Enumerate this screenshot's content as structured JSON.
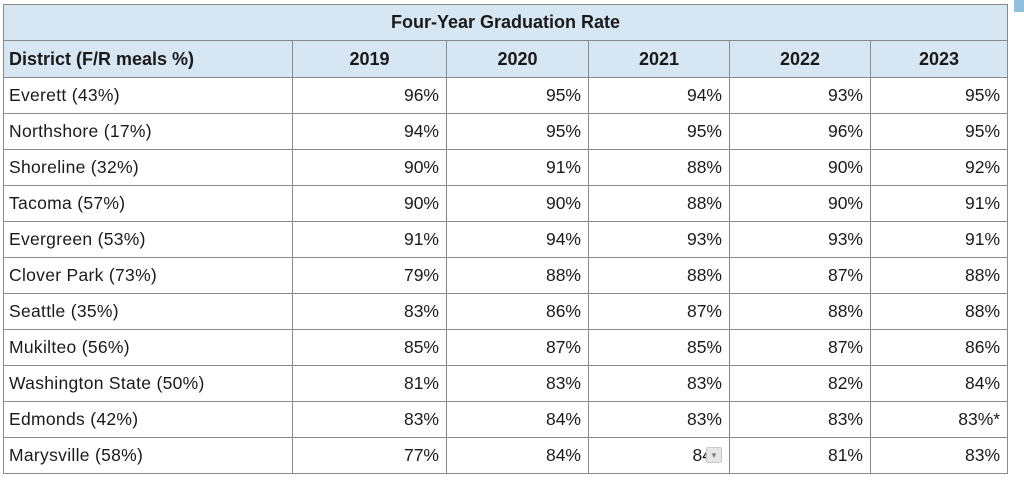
{
  "table": {
    "title": "Four-Year Graduation Rate",
    "district_header": "District (F/R meals %)",
    "years": [
      "2019",
      "2020",
      "2021",
      "2022",
      "2023"
    ],
    "rows": [
      {
        "district": "Everett (43%)",
        "values": [
          "96%",
          "95%",
          "94%",
          "93%",
          "95%"
        ]
      },
      {
        "district": "Northshore (17%)",
        "values": [
          "94%",
          "95%",
          "95%",
          "96%",
          "95%"
        ]
      },
      {
        "district": "Shoreline (32%)",
        "values": [
          "90%",
          "91%",
          "88%",
          "90%",
          "92%"
        ]
      },
      {
        "district": "Tacoma (57%)",
        "values": [
          "90%",
          "90%",
          "88%",
          "90%",
          "91%"
        ]
      },
      {
        "district": "Evergreen (53%)",
        "values": [
          "91%",
          "94%",
          "93%",
          "93%",
          "91%"
        ]
      },
      {
        "district": "Clover Park (73%)",
        "values": [
          "79%",
          "88%",
          "88%",
          "87%",
          "88%"
        ]
      },
      {
        "district": "Seattle (35%)",
        "values": [
          "83%",
          "86%",
          "87%",
          "88%",
          "88%"
        ]
      },
      {
        "district": "Mukilteo (56%)",
        "values": [
          "85%",
          "87%",
          "85%",
          "87%",
          "86%"
        ]
      },
      {
        "district": "Washington State (50%)",
        "values": [
          "81%",
          "83%",
          "83%",
          "82%",
          "84%"
        ]
      },
      {
        "district": "Edmonds (42%)",
        "values": [
          "83%",
          "84%",
          "83%",
          "83%",
          "83%*"
        ]
      },
      {
        "district": "Marysville (58%)",
        "values": [
          "77%",
          "84%",
          "84",
          "81%",
          "83%"
        ]
      }
    ]
  },
  "overlay": {
    "marker_icon": "chevron-down-icon",
    "marker_glyph": "▾"
  },
  "colors": {
    "header_bg": "#d6e6f3",
    "border": "#8a8a8a",
    "accent_strip": "#8fc0e0"
  }
}
